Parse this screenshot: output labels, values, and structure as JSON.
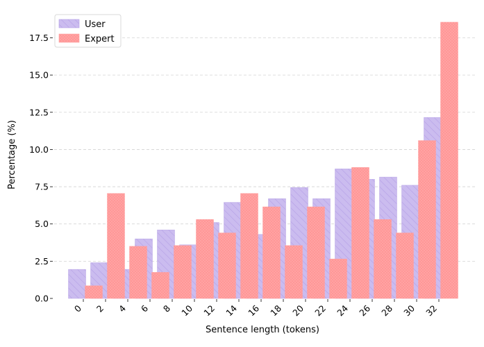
{
  "chart_data": {
    "type": "bar",
    "title": "",
    "xlabel": "Sentence length (tokens)",
    "ylabel": "Percentage (%)",
    "categories": [
      "0",
      "2",
      "4",
      "6",
      "8",
      "10",
      "12",
      "14",
      "16",
      "18",
      "20",
      "22",
      "24",
      "26",
      "28",
      "30",
      "32"
    ],
    "x_values": [
      0,
      2,
      4,
      6,
      8,
      10,
      12,
      14,
      16,
      18,
      20,
      22,
      24,
      26,
      28,
      30,
      32
    ],
    "ylim": [
      0,
      19.2
    ],
    "yticks": [
      0.0,
      2.5,
      5.0,
      7.5,
      10.0,
      12.5,
      15.0,
      17.5
    ],
    "ytick_labels": [
      "0.0",
      "2.5",
      "5.0",
      "7.5",
      "10.0",
      "12.5",
      "15.0",
      "17.5"
    ],
    "grid": "y-dashed",
    "legend_position": "top-left",
    "series": [
      {
        "name": "User",
        "color": "#b49fe6",
        "pattern": "diagonal-hatch",
        "x": [
          0,
          2,
          4,
          6,
          8,
          10,
          12,
          14,
          16,
          18,
          20,
          22,
          24,
          26,
          28,
          30,
          32
        ],
        "values": [
          1.95,
          2.4,
          1.95,
          4.0,
          4.6,
          3.6,
          5.1,
          6.45,
          4.3,
          6.7,
          7.45,
          6.7,
          8.7,
          8.0,
          8.15,
          7.6,
          12.15
        ]
      },
      {
        "name": "Expert",
        "color": "#ff9e9e",
        "pattern": "dots",
        "x": [
          0,
          2,
          4,
          6,
          8,
          10,
          12,
          14,
          16,
          18,
          20,
          22,
          24,
          26,
          28,
          30,
          32
        ],
        "values": [
          0.85,
          7.05,
          3.5,
          1.75,
          3.55,
          5.3,
          4.4,
          7.05,
          6.15,
          3.55,
          6.15,
          2.65,
          8.8,
          5.3,
          4.4,
          10.6,
          18.55
        ]
      }
    ]
  }
}
